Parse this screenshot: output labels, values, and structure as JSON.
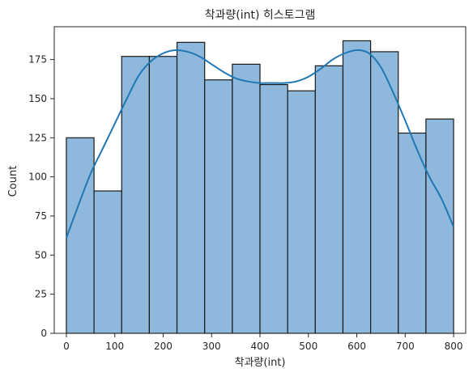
{
  "chart_data": {
    "type": "bar",
    "title": "착과량(int) 히스토그램",
    "xlabel": "착과량(int)",
    "ylabel": "Count",
    "xlim": [
      -25,
      825
    ],
    "ylim": [
      0,
      196
    ],
    "x_ticks": [
      0,
      100,
      200,
      300,
      400,
      500,
      600,
      700,
      800
    ],
    "y_ticks": [
      0,
      25,
      50,
      75,
      100,
      125,
      150,
      175
    ],
    "bins": [
      {
        "start": 0,
        "end": 57.14,
        "count": 125
      },
      {
        "start": 57.14,
        "end": 114.29,
        "count": 91
      },
      {
        "start": 114.29,
        "end": 171.43,
        "count": 177
      },
      {
        "start": 171.43,
        "end": 228.57,
        "count": 177
      },
      {
        "start": 228.57,
        "end": 285.71,
        "count": 186
      },
      {
        "start": 285.71,
        "end": 342.86,
        "count": 162
      },
      {
        "start": 342.86,
        "end": 400.0,
        "count": 172
      },
      {
        "start": 400.0,
        "end": 457.14,
        "count": 159
      },
      {
        "start": 457.14,
        "end": 514.29,
        "count": 155
      },
      {
        "start": 514.29,
        "end": 571.43,
        "count": 171
      },
      {
        "start": 571.43,
        "end": 628.57,
        "count": 187
      },
      {
        "start": 628.57,
        "end": 685.71,
        "count": 180
      },
      {
        "start": 685.71,
        "end": 742.86,
        "count": 128
      },
      {
        "start": 742.86,
        "end": 800.0,
        "count": 137
      }
    ],
    "kde": {
      "x": [
        0,
        25,
        50,
        75,
        100,
        125,
        150,
        175,
        200,
        225,
        250,
        275,
        300,
        325,
        350,
        375,
        400,
        425,
        450,
        475,
        500,
        525,
        550,
        575,
        600,
        625,
        650,
        675,
        700,
        725,
        750,
        775,
        800
      ],
      "y": [
        61,
        82,
        102,
        118,
        134,
        150,
        165,
        174,
        179,
        181,
        180,
        177,
        172,
        167,
        163,
        161,
        160,
        160,
        160,
        161,
        164,
        169,
        175,
        179,
        181,
        179,
        170,
        154,
        136,
        117,
        100,
        86,
        68
      ]
    },
    "colors": {
      "bar_fill": "#8fb9dc",
      "bar_edge": "#1a1a1a",
      "kde_line": "#1f77b4"
    },
    "grid": false,
    "legend": "none"
  }
}
